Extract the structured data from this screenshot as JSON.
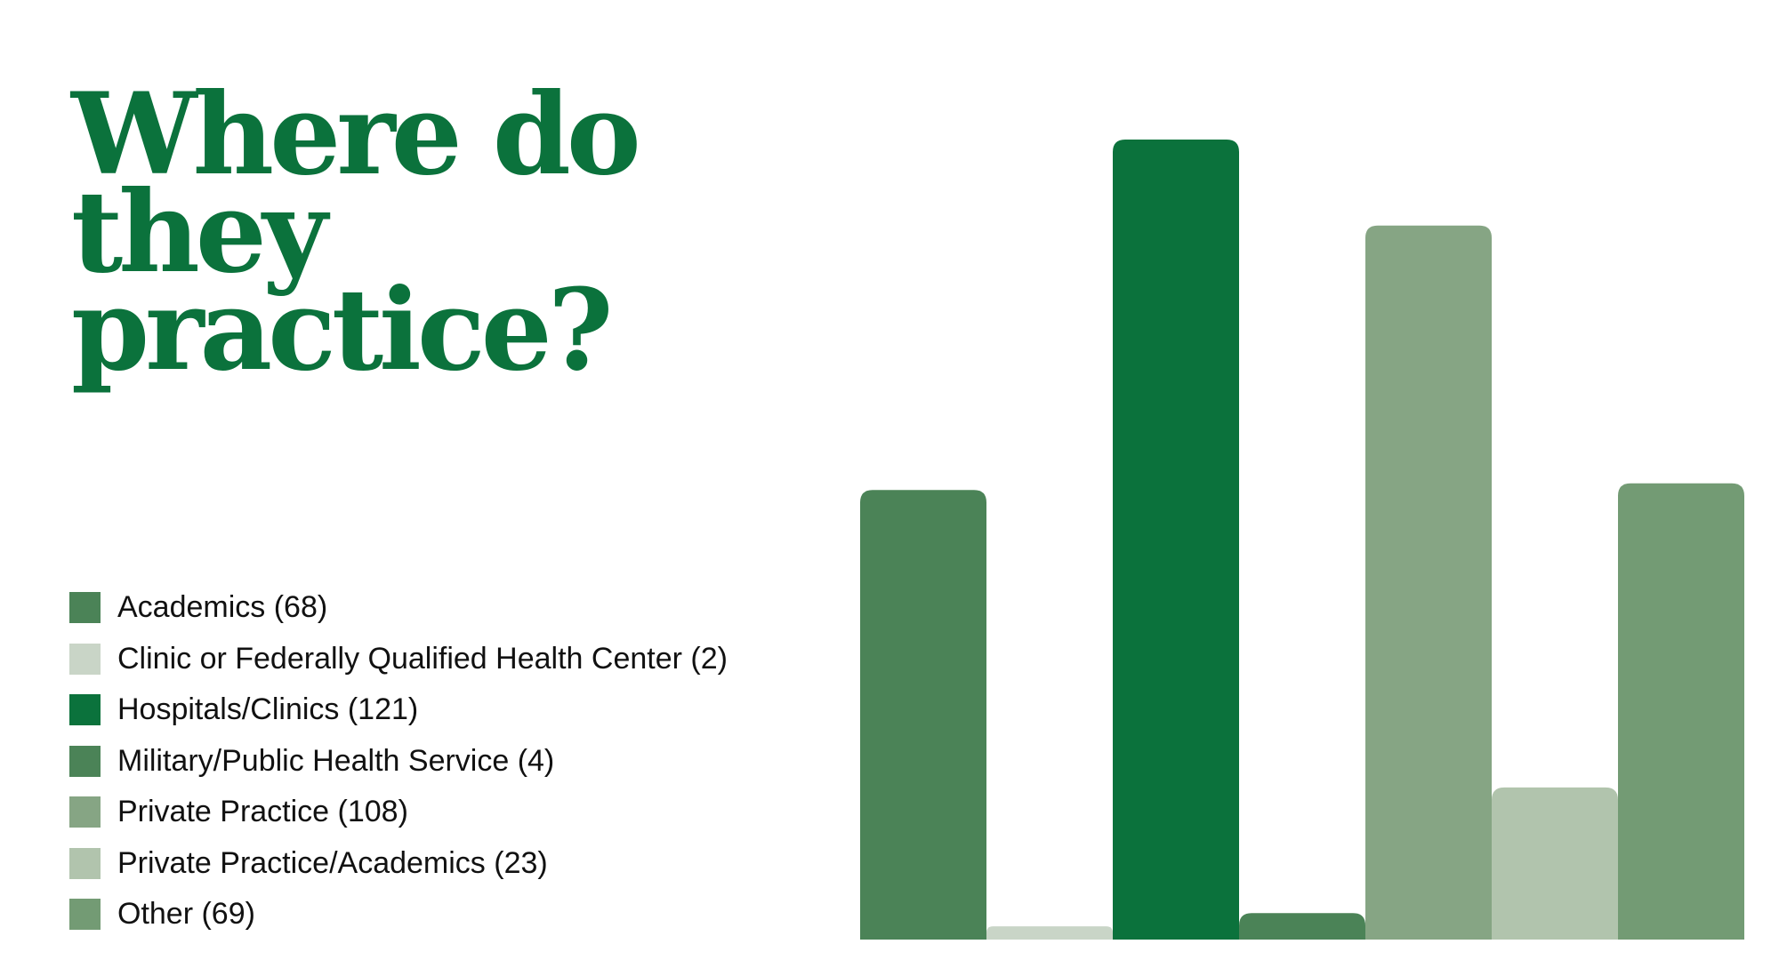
{
  "title": "Where do they practice?",
  "chart_data": {
    "type": "bar",
    "title": "Where do they practice?",
    "xlabel": "",
    "ylabel": "",
    "ylim": [
      0,
      121
    ],
    "grid": false,
    "legend_position": "left",
    "categories": [
      "Academics",
      "Clinic or Federally Qualified Health Center",
      "Hospitals/Clinics",
      "Military/Public Health Service",
      "Private Practice",
      "Private Practice/Academics",
      "Other"
    ],
    "values": [
      68,
      2,
      121,
      4,
      108,
      23,
      69
    ],
    "colors": [
      "#4b8357",
      "#c9d5c7",
      "#0b723c",
      "#4b8357",
      "#86a584",
      "#b1c4ad",
      "#739b74"
    ],
    "legend": [
      {
        "label": "Academics (68)",
        "color": "#4b8357"
      },
      {
        "label": "Clinic or Federally Qualified Health Center (2)",
        "color": "#c9d5c7"
      },
      {
        "label": "Hospitals/Clinics (121)",
        "color": "#0b723c"
      },
      {
        "label": "Military/Public Health Service (4)",
        "color": "#4b8357"
      },
      {
        "label": "Private Practice (108)",
        "color": "#86a584"
      },
      {
        "label": "Private Practice/Academics (23)",
        "color": "#b1c4ad"
      },
      {
        "label": "Other (69)",
        "color": "#739b74"
      }
    ]
  }
}
